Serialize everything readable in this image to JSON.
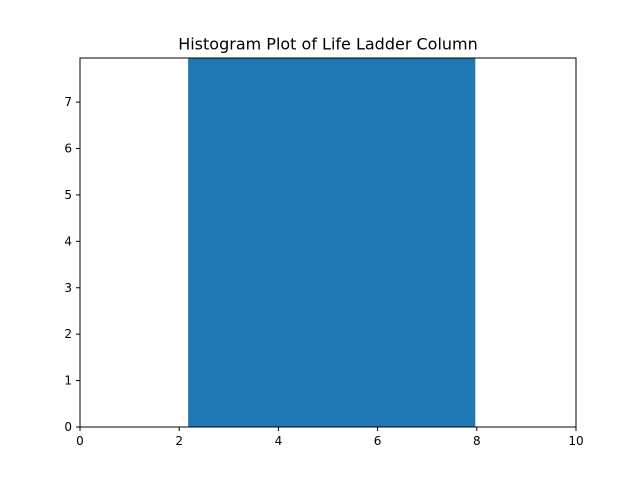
{
  "chart_data": {
    "type": "bar",
    "title": "Histogram Plot of Life Ladder Column",
    "xlabel": "",
    "ylabel": "",
    "xlim": [
      0,
      10
    ],
    "ylim": [
      0,
      7.95
    ],
    "x_ticks": [
      "0",
      "2",
      "4",
      "6",
      "8",
      "10"
    ],
    "y_ticks": [
      "0",
      "1",
      "2",
      "3",
      "4",
      "5",
      "6",
      "7"
    ],
    "bins": [
      {
        "x0": 2.18,
        "x1": 7.97,
        "count": 8
      }
    ],
    "grid": false,
    "legend": "none",
    "colors": {
      "bar": "#1f77b4",
      "axes": "#000000",
      "background": "#ffffff"
    }
  }
}
